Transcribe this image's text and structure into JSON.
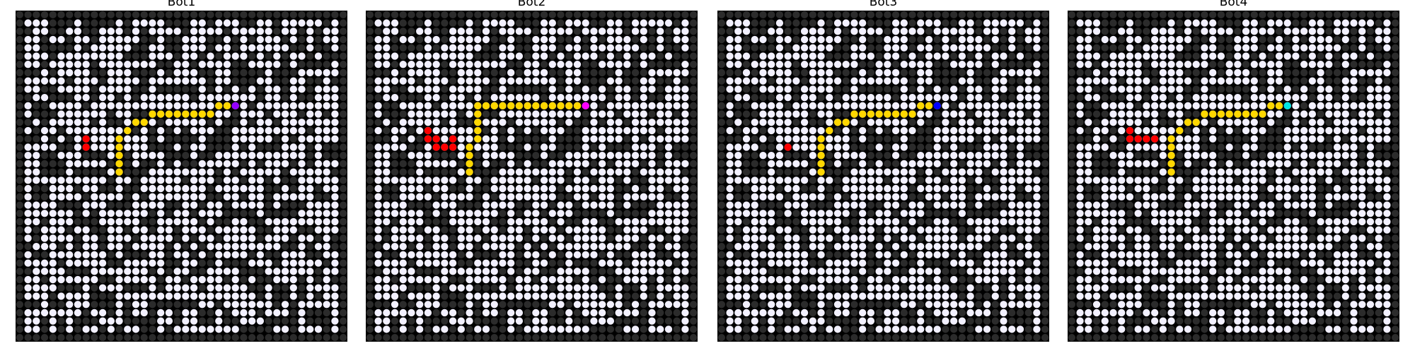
{
  "grid_size": 40,
  "path_color": "#ffd700",
  "fire_color": "#ff0000",
  "panels": [
    {
      "title": "Bot1",
      "bot_color": "#9400ff",
      "bot": [
        11,
        26
      ],
      "path": [
        [
          11,
          25
        ],
        [
          11,
          24
        ],
        [
          12,
          23
        ],
        [
          12,
          22
        ],
        [
          12,
          21
        ],
        [
          12,
          20
        ],
        [
          12,
          19
        ],
        [
          12,
          18
        ],
        [
          12,
          17
        ],
        [
          12,
          16
        ],
        [
          13,
          15
        ],
        [
          13,
          14
        ],
        [
          14,
          13
        ],
        [
          15,
          12
        ],
        [
          16,
          12
        ],
        [
          17,
          12
        ],
        [
          18,
          12
        ],
        [
          19,
          12
        ]
      ],
      "fire": [
        [
          15,
          8
        ],
        [
          16,
          8
        ]
      ]
    },
    {
      "title": "Bot2",
      "bot_color": "#ff00ff",
      "bot": [
        11,
        26
      ],
      "path": [
        [
          11,
          25
        ],
        [
          11,
          24
        ],
        [
          11,
          23
        ],
        [
          11,
          22
        ],
        [
          11,
          21
        ],
        [
          11,
          20
        ],
        [
          11,
          19
        ],
        [
          11,
          18
        ],
        [
          11,
          17
        ],
        [
          11,
          16
        ],
        [
          11,
          15
        ],
        [
          11,
          14
        ],
        [
          11,
          13
        ],
        [
          12,
          13
        ],
        [
          13,
          13
        ],
        [
          14,
          13
        ],
        [
          15,
          13
        ],
        [
          16,
          12
        ],
        [
          17,
          12
        ],
        [
          18,
          12
        ],
        [
          19,
          12
        ]
      ],
      "fire": [
        [
          14,
          7
        ],
        [
          15,
          7
        ],
        [
          15,
          8
        ],
        [
          16,
          8
        ],
        [
          16,
          9
        ],
        [
          15,
          10
        ],
        [
          16,
          10
        ]
      ]
    },
    {
      "title": "Bot3",
      "bot_color": "#0000ff",
      "bot": [
        11,
        26
      ],
      "path": [
        [
          11,
          25
        ],
        [
          11,
          24
        ],
        [
          12,
          23
        ],
        [
          12,
          22
        ],
        [
          12,
          21
        ],
        [
          12,
          20
        ],
        [
          12,
          19
        ],
        [
          12,
          18
        ],
        [
          12,
          17
        ],
        [
          12,
          16
        ],
        [
          13,
          15
        ],
        [
          13,
          14
        ],
        [
          14,
          13
        ],
        [
          15,
          12
        ],
        [
          16,
          12
        ],
        [
          17,
          12
        ],
        [
          18,
          12
        ],
        [
          19,
          12
        ]
      ],
      "fire": [
        [
          16,
          8
        ]
      ]
    },
    {
      "title": "Bot4",
      "bot_color": "#00e5e5",
      "bot": [
        11,
        26
      ],
      "path": [
        [
          11,
          25
        ],
        [
          11,
          24
        ],
        [
          12,
          23
        ],
        [
          12,
          22
        ],
        [
          12,
          21
        ],
        [
          12,
          20
        ],
        [
          12,
          19
        ],
        [
          12,
          18
        ],
        [
          12,
          17
        ],
        [
          12,
          16
        ],
        [
          13,
          15
        ],
        [
          13,
          14
        ],
        [
          14,
          13
        ],
        [
          15,
          12
        ],
        [
          16,
          12
        ],
        [
          17,
          12
        ],
        [
          18,
          12
        ],
        [
          19,
          12
        ]
      ],
      "fire": [
        [
          14,
          7
        ],
        [
          15,
          7
        ],
        [
          15,
          8
        ],
        [
          15,
          9
        ],
        [
          15,
          10
        ]
      ]
    }
  ]
}
